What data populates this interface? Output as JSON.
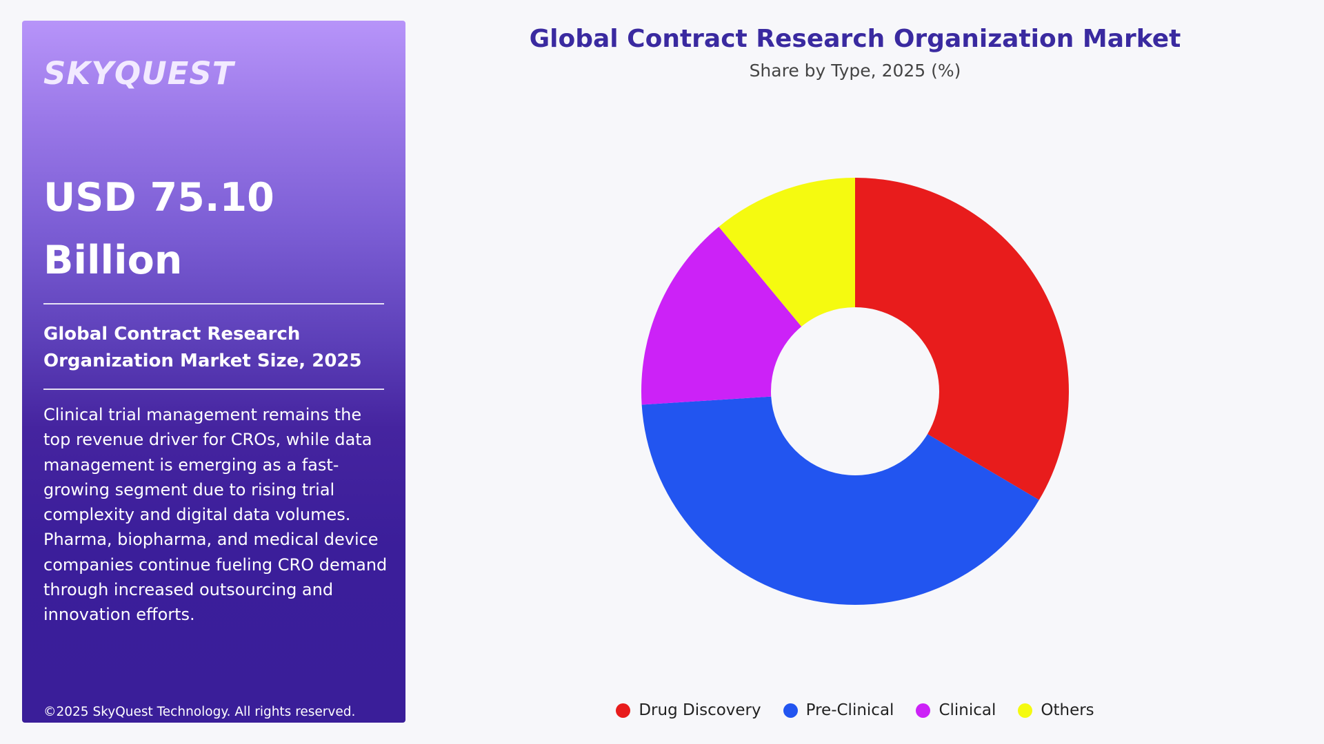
{
  "panel": {
    "logo": "SKYQUEST",
    "headline": "USD 75.10 Billion",
    "subhead": "Global Contract Research Organization Market Size, 2025",
    "description": "Clinical trial management remains the top revenue driver for CROs, while data management is emerging as a fast-growing segment due to rising trial complexity and digital data volumes. Pharma, biopharma, and medical device companies continue fueling CRO demand through increased outsourcing and innovation efforts.",
    "copyright": "©2025 SkyQuest Technology. All rights reserved."
  },
  "colors": {
    "panel_top": "#b794f9",
    "panel_bottom": "#3a1e99",
    "title": "#3a2aa0",
    "background": "#f7f7fa"
  },
  "chart_data": {
    "type": "pie",
    "variant": "donut",
    "title": "Global Contract Research Organization Market",
    "subtitle": "Share by Type, 2025 (%)",
    "categories": [
      "Drug Discovery",
      "Pre-Clinical",
      "Clinical",
      "Others"
    ],
    "values": [
      33.5,
      40.5,
      15,
      11
    ],
    "colors": [
      "#e81c1c",
      "#2255f0",
      "#cc22f7",
      "#f5fa10"
    ],
    "legend_position": "bottom",
    "data_labels": false
  }
}
